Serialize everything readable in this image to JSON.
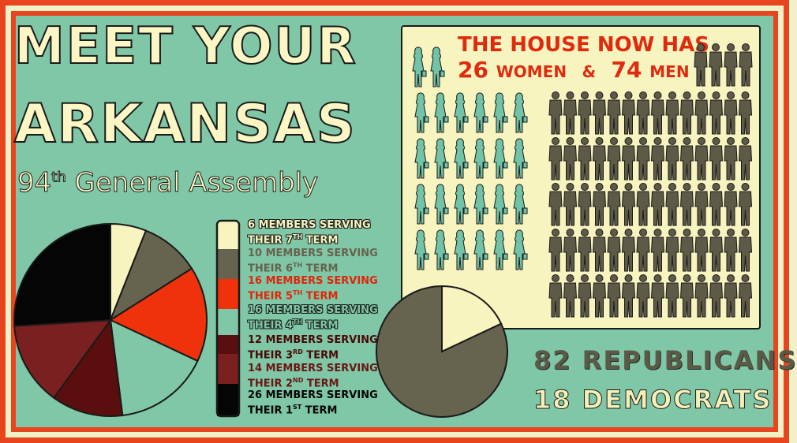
{
  "title": {
    "line1": "MEET YOUR",
    "line2": "ARKANSAS"
  },
  "subtitle": {
    "number": "94",
    "suffix": "th",
    "rest": " General Assembly"
  },
  "house": {
    "headline1": "THE HOUSE NOW HAS",
    "women_count": "26",
    "women_label": "WOMEN",
    "amp": "&",
    "men_count": "74",
    "men_label": "MEN"
  },
  "party": {
    "republicans": "82 REPUBLICANS",
    "democrats": "18 DEMOCRATS"
  },
  "colors": {
    "background": "#7fc7a6",
    "cream": "#f8f4bf",
    "accent": "#e8451f",
    "men": "#5d5a48",
    "women": "#72c4a8"
  },
  "chart_data": [
    {
      "type": "pie",
      "title": "",
      "categories": [
        "7th term",
        "6th term",
        "5th term",
        "4th term",
        "3rd term",
        "2nd term",
        "1st term"
      ],
      "values": [
        6,
        10,
        16,
        16,
        12,
        14,
        26
      ],
      "colors": [
        "#f8f4bf",
        "#66634f",
        "#f0320c",
        "#7fc7a6",
        "#5a0e0e",
        "#7a2020",
        "#050505"
      ],
      "label_colors": [
        "#f8f4bf",
        "#66634f",
        "#e0260a",
        "#7fc7a6",
        "#4a0808",
        "#6a1616",
        "#050505"
      ],
      "legend": [
        {
          "line1": "6 MEMBERS SERVING",
          "line2": "THEIR 7",
          "sup": "TH",
          "line2b": " TERM"
        },
        {
          "line1": "10 MEMBERS SERVING",
          "line2": "THEIR 6",
          "sup": "TH",
          "line2b": " TERM"
        },
        {
          "line1": "16 MEMBERS SERVING",
          "line2": "THEIR 5",
          "sup": "TH",
          "line2b": " TERM"
        },
        {
          "line1": "16 MEMBERS SERVING",
          "line2": "THEIR 4",
          "sup": "TH",
          "line2b": " TERM"
        },
        {
          "line1": "12 MEMBERS SERVING",
          "line2": "THEIR 3",
          "sup": "RD",
          "line2b": " TERM"
        },
        {
          "line1": "14 MEMBERS SERVING",
          "line2": "THEIR 2",
          "sup": "ND",
          "line2b": " TERM"
        },
        {
          "line1": "26 MEMBERS SERVING",
          "line2": "THEIR 1",
          "sup": "ST",
          "line2b": " TERM"
        }
      ]
    },
    {
      "type": "pie",
      "title": "",
      "categories": [
        "Democrats",
        "Republicans"
      ],
      "values": [
        18,
        82
      ],
      "colors": [
        "#f8f4bf",
        "#66634f"
      ]
    },
    {
      "type": "pictogram",
      "title": "",
      "categories": [
        "Women",
        "Men"
      ],
      "values": [
        26,
        74
      ],
      "colors": [
        "#72c4a8",
        "#5d5a48"
      ]
    }
  ]
}
